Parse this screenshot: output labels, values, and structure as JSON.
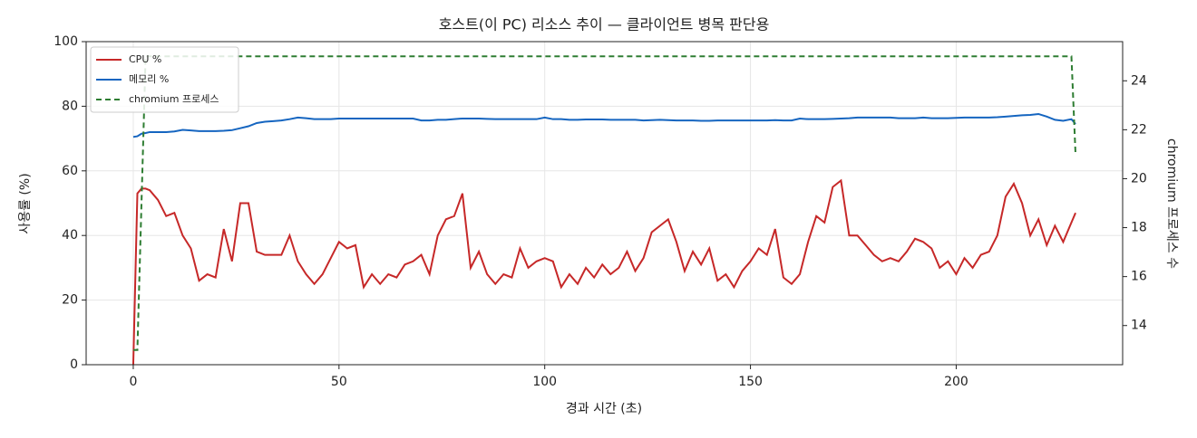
{
  "chart_data": {
    "type": "line",
    "title": "호스트(이 PC) 리소스 추이 — 클라이언트 병목 판단용",
    "x_label": "경과 시간 (초)",
    "y_label": "사용률 (%)",
    "y2_label": "chromium 프로세스 수",
    "x": [
      0,
      1,
      2,
      3,
      4,
      6,
      8,
      10,
      12,
      14,
      16,
      18,
      20,
      22,
      24,
      26,
      28,
      30,
      32,
      34,
      36,
      38,
      40,
      42,
      44,
      46,
      48,
      50,
      52,
      54,
      56,
      58,
      60,
      62,
      64,
      66,
      68,
      70,
      72,
      74,
      76,
      78,
      80,
      82,
      84,
      86,
      88,
      90,
      92,
      94,
      96,
      98,
      100,
      102,
      104,
      106,
      108,
      110,
      112,
      114,
      116,
      118,
      120,
      122,
      124,
      126,
      128,
      130,
      132,
      134,
      136,
      138,
      140,
      142,
      144,
      146,
      148,
      150,
      152,
      154,
      156,
      158,
      160,
      162,
      164,
      166,
      168,
      170,
      172,
      174,
      176,
      178,
      180,
      182,
      184,
      186,
      188,
      190,
      192,
      194,
      196,
      198,
      200,
      202,
      204,
      206,
      208,
      210,
      212,
      214,
      216,
      218,
      220,
      222,
      224,
      226,
      228,
      229
    ],
    "series": [
      {
        "name": "CPU %",
        "color": "#c62828",
        "dash": false,
        "values": [
          0,
          53,
          54.5,
          54.5,
          54,
          51,
          46,
          47,
          40,
          36,
          26,
          28,
          27,
          42,
          32,
          50,
          50,
          35,
          34,
          34,
          34,
          40,
          32,
          28,
          25,
          28,
          33,
          38,
          36,
          37,
          24,
          28,
          25,
          28,
          27,
          31,
          32,
          34,
          28,
          40,
          45,
          46,
          53,
          30,
          35,
          28,
          25,
          28,
          27,
          36,
          30,
          32,
          33,
          32,
          24,
          28,
          25,
          30,
          27,
          31,
          28,
          30,
          35,
          29,
          33,
          41,
          43,
          45,
          38,
          29,
          35,
          31,
          36,
          26,
          28,
          24,
          29,
          32,
          36,
          34,
          42,
          27,
          25,
          28,
          38,
          46,
          44,
          55,
          57,
          40,
          40,
          37,
          34,
          32,
          33,
          32,
          35,
          39,
          38,
          36,
          30,
          32,
          28,
          33,
          30,
          34,
          35,
          40,
          52,
          56,
          50,
          40,
          45,
          37,
          43,
          38,
          44,
          47
        ]
      },
      {
        "name": "메모리 %",
        "color": "#1565c0",
        "dash": false,
        "values": [
          70.5,
          70.7,
          71.5,
          71.7,
          72,
          72,
          72,
          72.2,
          72.7,
          72.5,
          72.3,
          72.3,
          72.3,
          72.4,
          72.6,
          73.2,
          73.8,
          74.8,
          75.2,
          75.4,
          75.6,
          76,
          76.5,
          76.3,
          76,
          76,
          76,
          76.2,
          76.2,
          76.2,
          76.2,
          76.2,
          76.2,
          76.2,
          76.2,
          76.2,
          76.2,
          75.6,
          75.6,
          75.8,
          75.8,
          76,
          76.2,
          76.2,
          76.2,
          76.1,
          76,
          76,
          76,
          76,
          76,
          76,
          76.5,
          76,
          76,
          75.8,
          75.8,
          75.9,
          75.9,
          75.9,
          75.8,
          75.8,
          75.8,
          75.8,
          75.6,
          75.7,
          75.8,
          75.7,
          75.6,
          75.6,
          75.6,
          75.5,
          75.5,
          75.6,
          75.6,
          75.6,
          75.6,
          75.6,
          75.6,
          75.6,
          75.7,
          75.6,
          75.6,
          76.2,
          76,
          76,
          76,
          76.1,
          76.2,
          76.3,
          76.5,
          76.5,
          76.5,
          76.5,
          76.5,
          76.3,
          76.3,
          76.3,
          76.5,
          76.3,
          76.3,
          76.3,
          76.4,
          76.5,
          76.5,
          76.5,
          76.5,
          76.6,
          76.8,
          77,
          77.2,
          77.3,
          77.6,
          76.8,
          75.8,
          75.5,
          76,
          74.5
        ]
      },
      {
        "name": "chromium 프로세스",
        "color": "#2e7d32",
        "dash": true,
        "axis": "y2",
        "values": [
          13,
          13,
          19,
          25,
          25,
          25,
          25,
          25,
          25,
          25,
          25,
          25,
          25,
          25,
          25,
          25,
          25,
          25,
          25,
          25,
          25,
          25,
          25,
          25,
          25,
          25,
          25,
          25,
          25,
          25,
          25,
          25,
          25,
          25,
          25,
          25,
          25,
          25,
          25,
          25,
          25,
          25,
          25,
          25,
          25,
          25,
          25,
          25,
          25,
          25,
          25,
          25,
          25,
          25,
          25,
          25,
          25,
          25,
          25,
          25,
          25,
          25,
          25,
          25,
          25,
          25,
          25,
          25,
          25,
          25,
          25,
          25,
          25,
          25,
          25,
          25,
          25,
          25,
          25,
          25,
          25,
          25,
          25,
          25,
          25,
          25,
          25,
          25,
          25,
          25,
          25,
          25,
          25,
          25,
          25,
          25,
          25,
          25,
          25,
          25,
          25,
          25,
          25,
          25,
          25,
          25,
          25,
          25,
          25,
          25,
          25,
          25,
          25,
          25,
          25,
          25,
          25,
          21
        ]
      }
    ],
    "xlim": [
      -11.45,
      240.45
    ],
    "xticks": [
      0,
      50,
      100,
      150,
      200
    ],
    "ylim": [
      0,
      100
    ],
    "yticks": [
      0,
      20,
      40,
      60,
      80,
      100
    ],
    "y2lim": [
      12.4,
      25.6
    ],
    "y2ticks": [
      14,
      16,
      18,
      20,
      22,
      24
    ],
    "grid": true,
    "legend": "upper left"
  }
}
